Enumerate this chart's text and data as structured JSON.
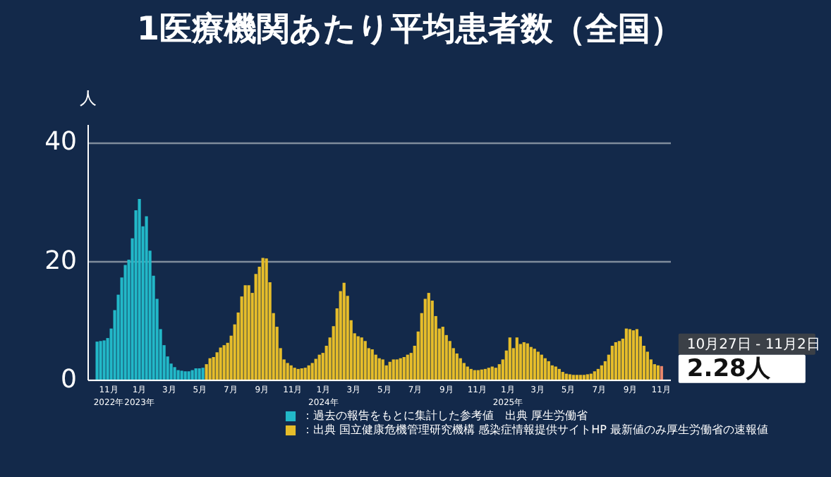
{
  "chart_data": {
    "type": "bar",
    "title": "1医療機関あたり平均患者数（全国）",
    "ylabel": "人",
    "xlim": [
      "2022-10-04",
      "2025-11-05"
    ],
    "xticks": [
      {
        "value": "2022-11-01",
        "label": "11月\n2022年"
      },
      {
        "value": "2023-01-01",
        "label": "1月\n2023年"
      },
      {
        "value": "2023-03-01",
        "label": "3月"
      },
      {
        "value": "2023-05-01",
        "label": "5月"
      },
      {
        "value": "2023-07-01",
        "label": "7月"
      },
      {
        "value": "2023-09-01",
        "label": "9月"
      },
      {
        "value": "2023-11-01",
        "label": "11月"
      },
      {
        "value": "2024-01-01",
        "label": "1月\n2024年"
      },
      {
        "value": "2024-03-01",
        "label": "3月"
      },
      {
        "value": "2024-05-01",
        "label": "5月"
      },
      {
        "value": "2024-07-01",
        "label": "7月"
      },
      {
        "value": "2024-09-01",
        "label": "9月"
      },
      {
        "value": "2024-11-01",
        "label": "11月"
      },
      {
        "value": "2025-01-01",
        "label": "1月\n2025年"
      },
      {
        "value": "2025-03-01",
        "label": "3月"
      },
      {
        "value": "2025-05-01",
        "label": "5月"
      },
      {
        "value": "2025-07-01",
        "label": "7月"
      },
      {
        "value": "2025-09-01",
        "label": "9月"
      },
      {
        "value": "2025-11-01",
        "label": "11月"
      }
    ],
    "ylim": [
      0,
      43
    ],
    "yticks": [
      0,
      20,
      40
    ],
    "grid": "y",
    "legend": "bottom",
    "series": [
      {
        "name": "：過去の報告をもとに集計した参考値　出典 厚生労働省",
        "color": "#22b8c8",
        "x": [
          "2022-10-09",
          "2022-10-16",
          "2022-10-23",
          "2022-10-30",
          "2022-11-06",
          "2022-11-13",
          "2022-11-20",
          "2022-11-27",
          "2022-12-04",
          "2022-12-11",
          "2022-12-18",
          "2022-12-25",
          "2023-01-01",
          "2023-01-08",
          "2023-01-15",
          "2023-01-22",
          "2023-01-29",
          "2023-02-05",
          "2023-02-12",
          "2023-02-19",
          "2023-02-26",
          "2023-03-05",
          "2023-03-12",
          "2023-03-19",
          "2023-03-26",
          "2023-04-02",
          "2023-04-09",
          "2023-04-16",
          "2023-04-23",
          "2023-04-30",
          "2023-05-07"
        ],
        "values": [
          6.4,
          6.5,
          6.6,
          7.0,
          8.6,
          11.7,
          14.3,
          17.2,
          19.3,
          20.2,
          23.8,
          28.5,
          30.4,
          25.8,
          27.5,
          21.7,
          17.5,
          13.6,
          8.5,
          5.8,
          3.9,
          2.7,
          2.1,
          1.6,
          1.5,
          1.4,
          1.4,
          1.6,
          1.9,
          1.9,
          2.0
        ]
      },
      {
        "name": "：出典 国立健康危機管理研究機構 感染症情報提供サイトHP 最新値のみ厚生労働省の速報値",
        "color": "#e6bd2a",
        "x": [
          "2023-05-14",
          "2023-05-21",
          "2023-05-28",
          "2023-06-04",
          "2023-06-11",
          "2023-06-18",
          "2023-06-25",
          "2023-07-02",
          "2023-07-09",
          "2023-07-16",
          "2023-07-23",
          "2023-07-30",
          "2023-08-06",
          "2023-08-13",
          "2023-08-20",
          "2023-08-27",
          "2023-09-03",
          "2023-09-10",
          "2023-09-17",
          "2023-09-24",
          "2023-10-01",
          "2023-10-08",
          "2023-10-15",
          "2023-10-22",
          "2023-10-29",
          "2023-11-05",
          "2023-11-12",
          "2023-11-19",
          "2023-11-26",
          "2023-12-03",
          "2023-12-10",
          "2023-12-17",
          "2023-12-24",
          "2023-12-31",
          "2024-01-07",
          "2024-01-14",
          "2024-01-21",
          "2024-01-28",
          "2024-02-04",
          "2024-02-11",
          "2024-02-18",
          "2024-02-25",
          "2024-03-03",
          "2024-03-10",
          "2024-03-17",
          "2024-03-24",
          "2024-03-31",
          "2024-04-07",
          "2024-04-14",
          "2024-04-21",
          "2024-04-28",
          "2024-05-05",
          "2024-05-12",
          "2024-05-19",
          "2024-05-26",
          "2024-06-02",
          "2024-06-09",
          "2024-06-16",
          "2024-06-23",
          "2024-06-30",
          "2024-07-07",
          "2024-07-14",
          "2024-07-21",
          "2024-07-28",
          "2024-08-04",
          "2024-08-11",
          "2024-08-18",
          "2024-08-25",
          "2024-09-01",
          "2024-09-08",
          "2024-09-15",
          "2024-09-22",
          "2024-09-29",
          "2024-10-06",
          "2024-10-13",
          "2024-10-20",
          "2024-10-27",
          "2024-11-03",
          "2024-11-10",
          "2024-11-17",
          "2024-11-24",
          "2024-12-01",
          "2024-12-08",
          "2024-12-15",
          "2024-12-22",
          "2024-12-29",
          "2025-01-05",
          "2025-01-12",
          "2025-01-19",
          "2025-01-26",
          "2025-02-02",
          "2025-02-09",
          "2025-02-16",
          "2025-02-23",
          "2025-03-02",
          "2025-03-09",
          "2025-03-16",
          "2025-03-23",
          "2025-03-30",
          "2025-04-06",
          "2025-04-13",
          "2025-04-20",
          "2025-04-27",
          "2025-05-04",
          "2025-05-11",
          "2025-05-18",
          "2025-05-25",
          "2025-06-01",
          "2025-06-08",
          "2025-06-15",
          "2025-06-22",
          "2025-06-29",
          "2025-07-06",
          "2025-07-13",
          "2025-07-20",
          "2025-07-27",
          "2025-08-03",
          "2025-08-10",
          "2025-08-17",
          "2025-08-24",
          "2025-08-31",
          "2025-09-07",
          "2025-09-14",
          "2025-09-21",
          "2025-09-28",
          "2025-10-05",
          "2025-10-12",
          "2025-10-19",
          "2025-10-26"
        ],
        "values": [
          2.6,
          3.6,
          3.8,
          4.6,
          5.4,
          5.8,
          6.2,
          7.4,
          9.3,
          11.3,
          14.0,
          15.9,
          15.9,
          14.6,
          17.8,
          19.0,
          20.5,
          20.4,
          16.4,
          11.2,
          8.9,
          5.3,
          3.4,
          2.8,
          2.4,
          2.0,
          1.8,
          1.9,
          2.0,
          2.4,
          2.8,
          3.5,
          4.2,
          4.5,
          5.7,
          7.1,
          9.0,
          12.0,
          14.9,
          16.3,
          14.1,
          10.0,
          7.8,
          7.3,
          7.1,
          6.5,
          5.3,
          5.1,
          4.2,
          3.6,
          3.4,
          2.4,
          3.0,
          3.4,
          3.4,
          3.6,
          3.8,
          4.2,
          4.5,
          5.7,
          8.1,
          11.2,
          13.6,
          14.6,
          13.3,
          10.7,
          8.6,
          8.9,
          7.5,
          6.5,
          5.3,
          4.4,
          3.6,
          2.8,
          2.2,
          1.8,
          1.6,
          1.6,
          1.7,
          1.8,
          2.0,
          2.2,
          2.0,
          2.6,
          3.4,
          4.9,
          7.1,
          5.3,
          7.1,
          6.0,
          6.3,
          6.1,
          5.5,
          5.2,
          4.7,
          4.2,
          3.6,
          3.1,
          2.4,
          2.2,
          1.8,
          1.3,
          1.0,
          0.9,
          0.8,
          0.8,
          0.8,
          0.8,
          0.9,
          1.0,
          1.4,
          1.8,
          2.4,
          3.1,
          4.2,
          5.7,
          6.3,
          6.5,
          6.9,
          8.6,
          8.5,
          8.3,
          8.5,
          7.3,
          5.7,
          4.7,
          3.4,
          2.6,
          2.4
        ]
      },
      {
        "color": "#e8866a",
        "x": [
          "2025-11-02"
        ],
        "values": [
          2.28
        ]
      }
    ],
    "annotations": [
      {
        "text": "10月27日 - 11月2日",
        "x": "2025-11-02",
        "y": 2.28
      },
      {
        "text": "2.28人",
        "x": "2025-11-02",
        "y": 2.28
      }
    ]
  }
}
